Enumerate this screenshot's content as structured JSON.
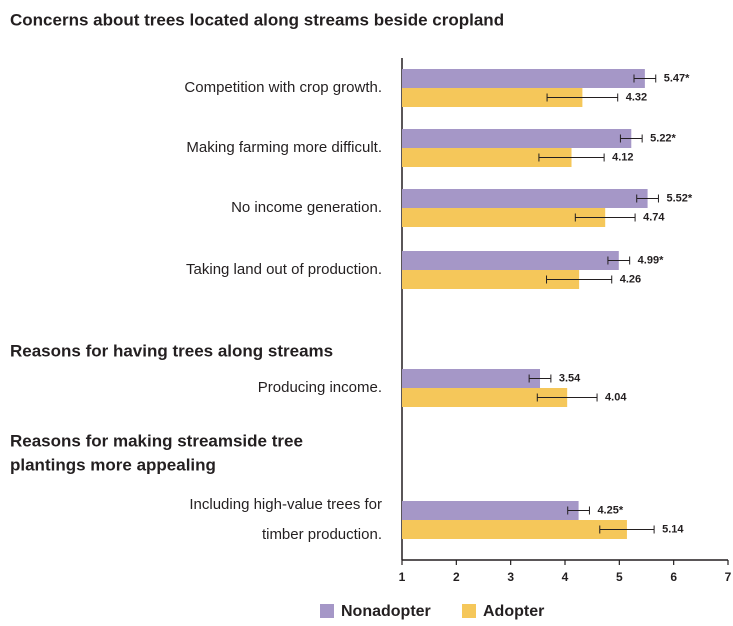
{
  "chart_data": {
    "type": "bar",
    "orientation": "horizontal",
    "title": "Concerns about trees located along streams beside cropland",
    "section_headings": [
      [
        "Reasons for having trees along streams"
      ],
      [
        "Reasons for making streamside tree",
        "plantings more appealing"
      ]
    ],
    "categories": [
      [
        "Competition with crop growth."
      ],
      [
        "Making farming more difficult."
      ],
      [
        "No income generation."
      ],
      [
        "Taking land out of production."
      ],
      [
        "Producing income."
      ],
      [
        "Including high-value trees for",
        "timber production."
      ]
    ],
    "series": [
      {
        "name": "Nonadopter",
        "color": "#a597c7",
        "values": [
          5.47,
          5.22,
          5.52,
          4.99,
          3.54,
          4.25
        ],
        "value_labels": [
          "5.47*",
          "5.22*",
          "5.52*",
          "4.99*",
          "3.54",
          "4.25*"
        ],
        "errors": [
          0.2,
          0.2,
          0.2,
          0.2,
          0.2,
          0.2
        ]
      },
      {
        "name": "Adopter",
        "color": "#f5c75a",
        "values": [
          4.32,
          4.12,
          4.74,
          4.26,
          4.04,
          5.14
        ],
        "value_labels": [
          "4.32",
          "4.12",
          "4.74",
          "4.26",
          "4.04",
          "5.14"
        ],
        "errors": [
          0.65,
          0.6,
          0.55,
          0.6,
          0.55,
          0.5
        ]
      }
    ],
    "xlim": [
      1,
      7
    ],
    "xticks": [
      1,
      2,
      3,
      4,
      5,
      6,
      7
    ],
    "legend": "bottom"
  }
}
